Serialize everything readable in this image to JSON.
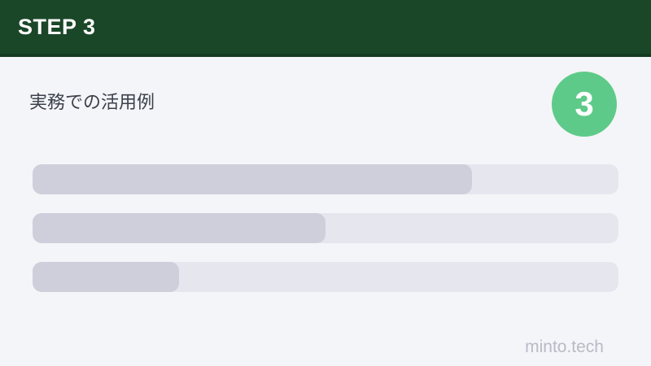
{
  "header": {
    "label": "STEP 3"
  },
  "content": {
    "title": "実務での活用例",
    "badge_number": "3"
  },
  "skeleton_bars": [
    {
      "name": "placeholder-line-1",
      "fill_percent": 75
    },
    {
      "name": "placeholder-line-2",
      "fill_percent": 50
    },
    {
      "name": "placeholder-line-3",
      "fill_percent": 25
    }
  ],
  "footer": {
    "watermark": "minto.tech"
  },
  "colors": {
    "header_bg": "#1a4728",
    "header_border": "#143c21",
    "body_bg": "#f4f5f8",
    "badge_bg": "#5eca89",
    "badge_text": "#ffffff",
    "bar_track": "#e6e6ef",
    "bar_fill": "#cfcfdc",
    "title_text": "#3b404b",
    "watermark_text": "#b8bac7"
  }
}
